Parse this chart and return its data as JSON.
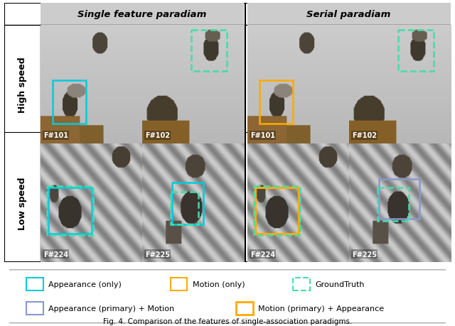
{
  "col_headers": [
    "Single feature paradiam",
    "Serial paradiam"
  ],
  "row_headers": [
    "High speed",
    "Low speed"
  ],
  "frame_labels": [
    [
      "F#101",
      "F#102",
      "F#101",
      "F#102"
    ],
    [
      "F#224",
      "F#225",
      "F#224",
      "F#225"
    ]
  ],
  "figure_caption": "Fig. 4. Comparison of the features of single-association paradigms.",
  "header_bg": "#CCCCCC",
  "outer_border": "#000000",
  "legend_border": "#BBBBBB",
  "colors": {
    "appearance_only": "#00CCDD",
    "motion_only": "#FFAA00",
    "ground_truth": "#44DDAA",
    "appearance_primary": "#8899CC",
    "motion_primary": "#FFAA00"
  },
  "legend_row1": [
    {
      "label": "Appearance (only)",
      "color": "#00CCDD",
      "ls": "solid",
      "lw": 1.5
    },
    {
      "label": "Motion (only)",
      "color": "#FFAA00",
      "ls": "solid",
      "lw": 1.5
    },
    {
      "label": "GroundTruth",
      "color": "#44DDAA",
      "ls": "dashed",
      "lw": 1.5
    }
  ],
  "legend_row2": [
    {
      "label": "Appearance (primary) + Motion",
      "color": "#8899CC",
      "ls": "solid",
      "lw": 1.5
    },
    {
      "label": "Motion (primary) + Appearance",
      "color": "#FFAA00",
      "ls": "solid",
      "lw": 2.0
    }
  ]
}
